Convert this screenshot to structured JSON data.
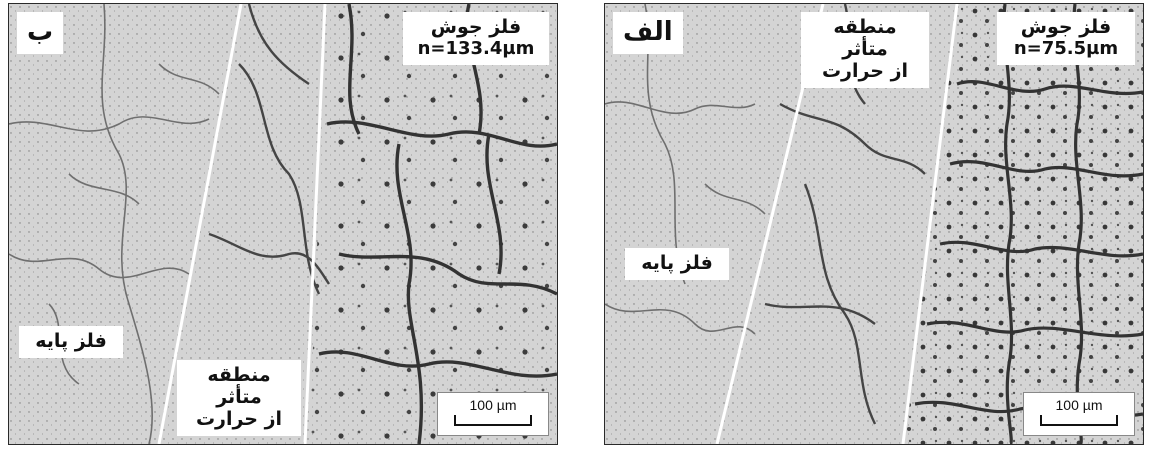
{
  "panels": {
    "left": {
      "letter": "ب",
      "weld_metal": "فلز جوش",
      "grain_size": "n=133.4µm",
      "haz_line1": "منطقه متأثر",
      "haz_line2": "از حرارت",
      "base_metal": "فلز پایه",
      "scale": "100 µm"
    },
    "right": {
      "letter": "الف",
      "weld_metal": "فلز جوش",
      "grain_size": "n=75.5µm",
      "haz_line1": "منطقه متأثر",
      "haz_line2": "از حرارت",
      "base_metal": "فلز پایه",
      "scale": "100 µm"
    }
  }
}
